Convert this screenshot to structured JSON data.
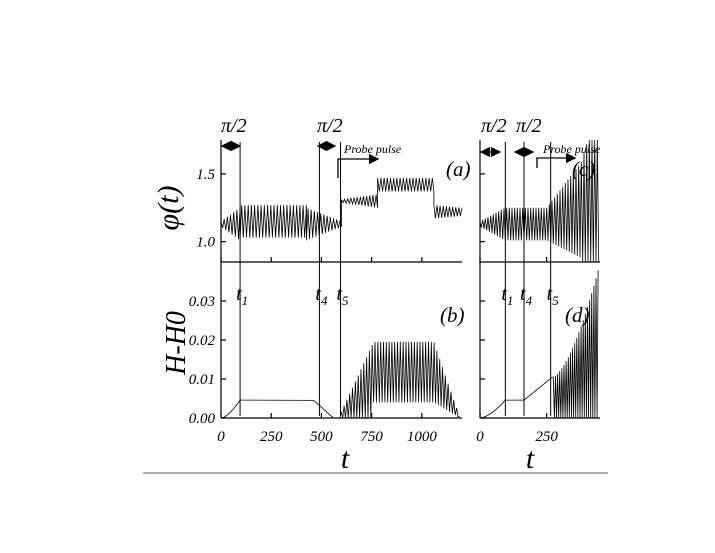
{
  "chart_data": [
    {
      "id": "a",
      "type": "line",
      "panel_label": "(a)",
      "ylabel": "φ(t)",
      "xlim": [
        0,
        1200
      ],
      "ylim": [
        0.85,
        1.75
      ],
      "yticks": [
        {
          "value": 1.0,
          "label": "1.0"
        },
        {
          "value": 1.5,
          "label": "1.5"
        }
      ],
      "annotations": {
        "pulse1": "π/2",
        "pulse2": "π/2",
        "probe": "Probe pulse"
      },
      "segments": [
        {
          "t0": 0,
          "t1": 95,
          "center": 1.13,
          "amp0": 0.02,
          "amp1": 0.12
        },
        {
          "t0": 95,
          "t1": 425,
          "center": 1.15,
          "amp0": 0.12,
          "amp1": 0.12
        },
        {
          "t0": 425,
          "t1": 600,
          "center": 1.13,
          "amp0": 0.12,
          "amp1": 0.02
        },
        {
          "t0": 600,
          "t1": 780,
          "center": 1.3,
          "amp0": 0.01,
          "amp1": 0.05
        },
        {
          "t0": 780,
          "t1": 1060,
          "center": 1.42,
          "amp0": 0.05,
          "amp1": 0.05
        },
        {
          "t0": 1060,
          "t1": 1200,
          "center": 1.22,
          "amp0": 0.05,
          "amp1": 0.03
        }
      ]
    },
    {
      "id": "b",
      "type": "line",
      "panel_label": "(b)",
      "ylabel": "H-H0",
      "xlabel": "t",
      "xlim": [
        0,
        1200
      ],
      "ylim": [
        0,
        0.04
      ],
      "xticks": [
        {
          "value": 0,
          "label": "0"
        },
        {
          "value": 250,
          "label": "250"
        },
        {
          "value": 500,
          "label": "500"
        },
        {
          "value": 750,
          "label": "750"
        },
        {
          "value": 1000,
          "label": "1000"
        }
      ],
      "yticks": [
        {
          "value": 0.0,
          "label": "0.00"
        },
        {
          "value": 0.01,
          "label": "0.01"
        },
        {
          "value": 0.02,
          "label": "0.02"
        },
        {
          "value": 0.03,
          "label": "0.03"
        }
      ],
      "time_markers": [
        {
          "t": 95,
          "label": "t1"
        },
        {
          "t": 490,
          "label": "t4"
        },
        {
          "t": 595,
          "label": "t5"
        }
      ],
      "flat_level": 0.0046,
      "oscillation": {
        "min": 0.004,
        "max": 0.0195
      }
    },
    {
      "id": "c",
      "type": "line",
      "panel_label": "(c)",
      "xlim": [
        0,
        450
      ],
      "ylim": [
        0.85,
        1.75
      ],
      "annotations": {
        "pulse1": "π/2",
        "pulse2": "π/2",
        "probe": "Probe pulse"
      }
    },
    {
      "id": "d",
      "type": "line",
      "panel_label": "(d)",
      "xlabel": "t",
      "xlim": [
        0,
        450
      ],
      "ylim": [
        0,
        0.04
      ],
      "xticks": [
        {
          "value": 0,
          "label": "0"
        },
        {
          "value": 250,
          "label": "250"
        }
      ],
      "time_markers": [
        {
          "t": 95,
          "label": "t1"
        },
        {
          "t": 165,
          "label": "t4"
        },
        {
          "t": 265,
          "label": "t5"
        }
      ]
    }
  ]
}
